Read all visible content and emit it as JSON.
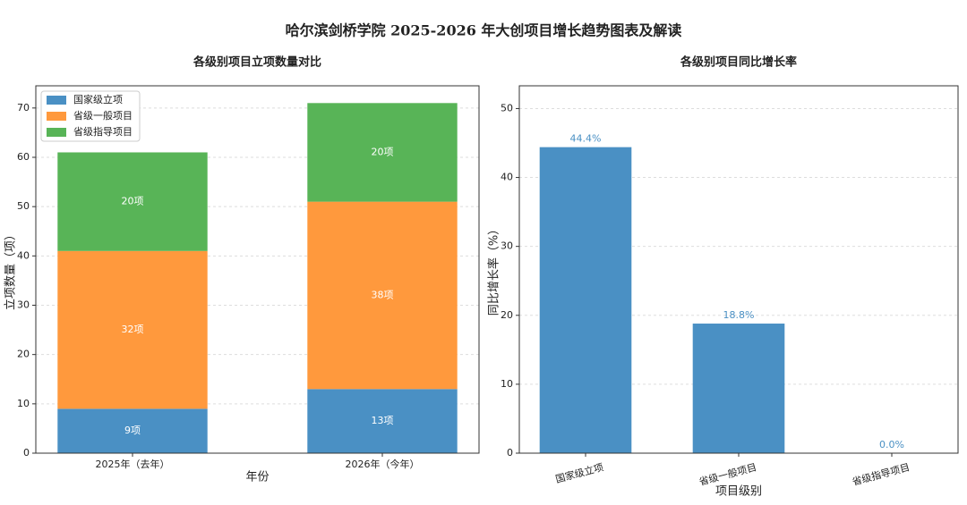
{
  "title": "哈尔滨剑桥学院 2025-2026 年大创项目增长趋势图表及解读",
  "chart_data": [
    {
      "type": "stacked_bar",
      "title": "各级别项目立项数量对比",
      "xlabel": "年份",
      "ylabel": "立项数量（项）",
      "categories": [
        "2025年（去年）",
        "2026年（今年）"
      ],
      "series": [
        {
          "name": "国家级立项",
          "color": "#4a90c4",
          "values": [
            9,
            13
          ],
          "value_labels": [
            "9项",
            "13项"
          ]
        },
        {
          "name": "省级一般项目",
          "color": "#ff993d",
          "values": [
            32,
            38
          ],
          "value_labels": [
            "32项",
            "38项"
          ]
        },
        {
          "name": "省级指导项目",
          "color": "#58b457",
          "values": [
            20,
            20
          ],
          "value_labels": [
            "20项",
            "20项"
          ]
        }
      ],
      "ylim": [
        0,
        74.5
      ],
      "yticks": [
        0,
        10,
        20,
        30,
        40,
        50,
        60,
        70
      ],
      "grid": true,
      "legend": "upper-left"
    },
    {
      "type": "bar",
      "title": "各级别项目同比增长率",
      "xlabel": "项目级别",
      "ylabel": "同比增长率（%）",
      "categories": [
        "国家级立项",
        "省级一般项目",
        "省级指导项目"
      ],
      "values": [
        44.4,
        18.8,
        0.0
      ],
      "value_labels": [
        "44.4%",
        "18.8%",
        "0.0%"
      ],
      "color": "#4a90c4",
      "ylim": [
        0,
        53.3
      ],
      "yticks": [
        0,
        10,
        20,
        30,
        40,
        50
      ],
      "grid": true
    }
  ]
}
